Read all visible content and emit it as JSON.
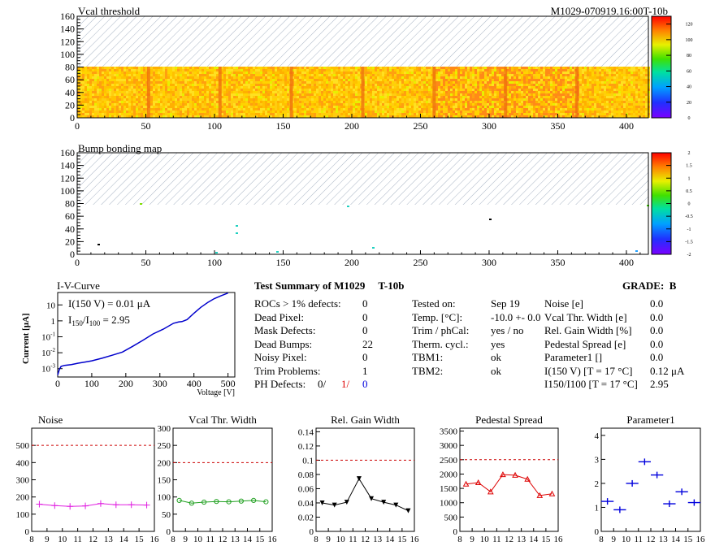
{
  "header": {
    "map1_title": "Vcal threshold",
    "module_id": "M1029-070919.16:00T-10b",
    "map2_title": "Bump bonding map"
  },
  "maps": {
    "x_ticks": [
      "0",
      "50",
      "100",
      "150",
      "200",
      "250",
      "300",
      "350",
      "400"
    ],
    "y_ticks": [
      "0",
      "20",
      "40",
      "60",
      "80",
      "100",
      "120",
      "140",
      "160"
    ],
    "map1_colorbar_ticks": [
      "0",
      "20",
      "40",
      "60",
      "80",
      "100",
      "120"
    ],
    "map2_colorbar_ticks": [
      "-2",
      "-1.5",
      "-1",
      "-0.5",
      "0",
      "0.5",
      "1",
      "1.5",
      "2"
    ]
  },
  "iv": {
    "title": "I-V-Curve",
    "ylabel": "Current [μA]",
    "xlabel": "Voltage [V]",
    "i150": "I(150 V) = 0.01 μA",
    "ratio_label_pre": "I",
    "ratio_sub1": "150",
    "ratio_mid": "/I",
    "ratio_sub2": "100",
    "ratio_val": " =  2.95"
  },
  "summary": {
    "title": "Test Summary of M1029     T-10b",
    "grade": "GRADE:  B",
    "left_rows": [
      {
        "label": "ROCs > 1% defects:",
        "value": "0"
      },
      {
        "label": "Dead Pixel:",
        "value": "0"
      },
      {
        "label": "Mask Defects:",
        "value": "0"
      },
      {
        "label": "Dead Bumps:",
        "value": "22"
      },
      {
        "label": "Noisy Pixel:",
        "value": "0"
      },
      {
        "label": "Trim Problems:",
        "value": "1"
      }
    ],
    "ph_label": "PH Defects:",
    "ph_v1": "0/",
    "ph_v2": "1/",
    "ph_v3": "0",
    "mid_rows": [
      {
        "label": "Tested on:",
        "value": "Sep 19"
      },
      {
        "label": "Temp. [°C]:",
        "value": "-10.0 +- 0.0"
      },
      {
        "label": "Trim / phCal:",
        "value": "yes / no"
      },
      {
        "label": "Therm. cycl.:",
        "value": "yes"
      },
      {
        "label": "TBM1:",
        "value": "ok"
      },
      {
        "label": "TBM2:",
        "value": "ok"
      }
    ],
    "right_rows": [
      {
        "label": "Noise [e]",
        "value": "0.0"
      },
      {
        "label": "Vcal Thr. Width [e]",
        "value": "0.0"
      },
      {
        "label": "Rel. Gain Width [%]",
        "value": "0.0"
      },
      {
        "label": "Pedestal Spread [e]",
        "value": "0.0"
      },
      {
        "label": "Parameter1 []",
        "value": "0.0"
      },
      {
        "label": "I(150 V) [T = 17 °C]",
        "value": "0.12 μA"
      },
      {
        "label": "I150/I100   [T = 17 °C]",
        "value": "2.95"
      }
    ]
  },
  "colors": {
    "noise": "#e020e0",
    "vcal": "#20a020",
    "gain": "#000000",
    "pedestal": "#dd0000",
    "param": "#0000dd",
    "iv": "#0000cc",
    "limit": "#cc0000",
    "ph_red": "#dd0000",
    "ph_blue": "#0000dd"
  },
  "chart_data": [
    {
      "type": "line",
      "title": "I-V-Curve",
      "xlabel": "Voltage [V]",
      "ylabel": "Current [μA]",
      "xlim": [
        0,
        520
      ],
      "ylim": [
        0.0003,
        60
      ],
      "ylog": true,
      "x_ticks": [
        0,
        100,
        200,
        300,
        400,
        500
      ],
      "y_ticks": [
        "10^-3",
        "10^-2",
        "10^-1",
        "1",
        "10"
      ],
      "x": [
        0,
        5,
        10,
        20,
        40,
        60,
        80,
        100,
        130,
        160,
        190,
        220,
        250,
        280,
        310,
        340,
        355,
        365,
        380,
        400,
        420,
        440,
        460,
        480,
        500
      ],
      "y": [
        0.0004,
        0.0009,
        0.0014,
        0.0016,
        0.0018,
        0.0022,
        0.0026,
        0.0031,
        0.0045,
        0.007,
        0.011,
        0.025,
        0.06,
        0.15,
        0.3,
        0.7,
        0.85,
        0.9,
        1.2,
        3.0,
        7.0,
        14,
        25,
        38,
        55
      ]
    },
    {
      "type": "scatter",
      "title": "Noise",
      "x_ticks": [
        8,
        9,
        10,
        11,
        12,
        13,
        14,
        15,
        16
      ],
      "y_ticks": [
        0,
        100,
        200,
        300,
        400,
        500
      ],
      "xlim": [
        8,
        16
      ],
      "ylim": [
        0,
        600
      ],
      "limit": 500,
      "x": [
        8.5,
        9.5,
        10.5,
        11.5,
        12.5,
        13.5,
        14.5,
        15.5
      ],
      "y": [
        158,
        150,
        145,
        148,
        162,
        155,
        155,
        153
      ]
    },
    {
      "type": "line",
      "title": "Vcal Thr. Width",
      "x_ticks": [
        8,
        9,
        10,
        11,
        12,
        13,
        14,
        15,
        16
      ],
      "y_ticks": [
        0,
        50,
        100,
        150,
        200,
        250,
        300
      ],
      "xlim": [
        8,
        16
      ],
      "ylim": [
        0,
        300
      ],
      "limit": 200,
      "x": [
        8.5,
        9.5,
        10.5,
        11.5,
        12.5,
        13.5,
        14.5,
        15.5
      ],
      "y": [
        90,
        82,
        85,
        87,
        86,
        88,
        90,
        86
      ]
    },
    {
      "type": "line",
      "title": "Rel. Gain Width",
      "x_ticks": [
        8,
        9,
        10,
        11,
        12,
        13,
        14,
        15,
        16
      ],
      "y_ticks": [
        0,
        0.02,
        0.04,
        0.06,
        0.08,
        0.1,
        0.12,
        0.14
      ],
      "xlim": [
        8,
        16
      ],
      "ylim": [
        0,
        0.145
      ],
      "limit": 0.1,
      "x": [
        8.5,
        9.5,
        10.5,
        11.5,
        12.5,
        13.5,
        14.5,
        15.5
      ],
      "y": [
        0.04,
        0.037,
        0.041,
        0.074,
        0.046,
        0.041,
        0.037,
        0.029
      ]
    },
    {
      "type": "line",
      "title": "Pedestal Spread",
      "x_ticks": [
        8,
        9,
        10,
        11,
        12,
        13,
        14,
        15,
        16
      ],
      "y_ticks": [
        0,
        500,
        1000,
        1500,
        2000,
        2500,
        3000,
        3500
      ],
      "xlim": [
        8,
        16
      ],
      "ylim": [
        0,
        3600
      ],
      "limit": 2500,
      "x": [
        8.5,
        9.5,
        10.5,
        11.5,
        12.5,
        13.5,
        14.5,
        15.5
      ],
      "y": [
        1650,
        1700,
        1380,
        1980,
        1960,
        1820,
        1250,
        1310
      ]
    },
    {
      "type": "scatter",
      "title": "Parameter1",
      "x_ticks": [
        8,
        9,
        10,
        11,
        12,
        13,
        14,
        15,
        16
      ],
      "y_ticks": [
        0,
        1,
        2,
        3,
        4
      ],
      "xlim": [
        8,
        16
      ],
      "ylim": [
        0,
        4.3
      ],
      "x": [
        8.5,
        9.5,
        10.5,
        11.5,
        12.5,
        13.5,
        14.5,
        15.5
      ],
      "y": [
        1.25,
        0.9,
        2.0,
        2.9,
        2.35,
        1.15,
        1.65,
        1.2
      ]
    },
    {
      "type": "heatmap",
      "title": "Vcal threshold",
      "xlim": [
        0,
        416
      ],
      "ylim": [
        0,
        160
      ],
      "zlim": [
        0,
        130
      ],
      "filled_rows": [
        0,
        80
      ],
      "chip_edges": [
        52,
        104,
        156,
        208,
        260,
        312,
        364
      ],
      "typical_value": 85
    },
    {
      "type": "heatmap",
      "title": "Bump bonding map",
      "xlim": [
        0,
        416
      ],
      "ylim": [
        0,
        160
      ],
      "zlim": [
        -2,
        2
      ],
      "filled_rows": [
        0,
        80
      ],
      "typical_value": 0
    }
  ]
}
